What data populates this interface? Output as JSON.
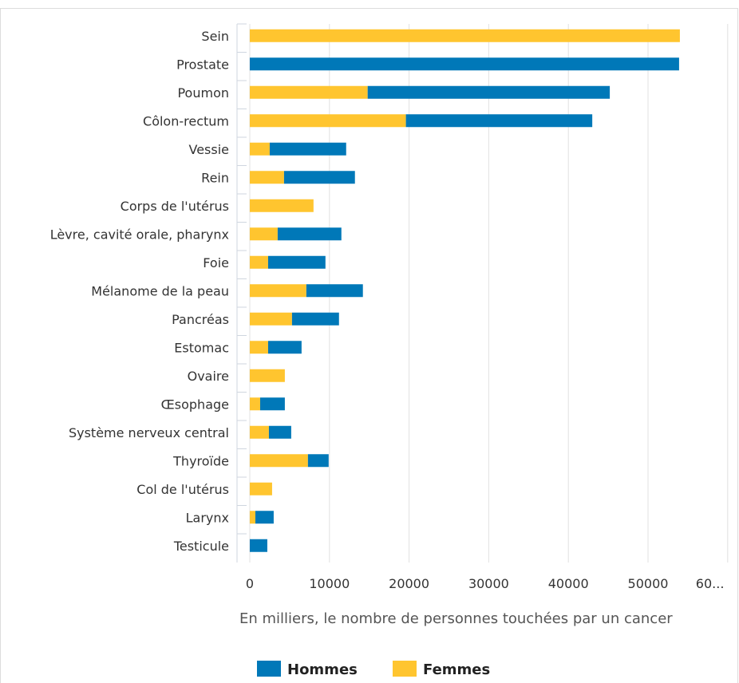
{
  "chart_data": {
    "type": "bar",
    "orientation": "horizontal",
    "stacked": true,
    "categories": [
      "Sein",
      "Prostate",
      "Poumon",
      "Côlon-rectum",
      "Vessie",
      "Rein",
      "Corps de l'utérus",
      "Lèvre, cavité orale, pharynx",
      "Foie",
      "Mélanome de la peau",
      "Pancréas",
      "Estomac",
      "Ovaire",
      "Œsophage",
      "Système nerveux central",
      "Thyroïde",
      "Col de l'utérus",
      "Larynx",
      "Testicule"
    ],
    "series": [
      {
        "name": "Femmes",
        "color": "#FFC52F",
        "values": [
          54000,
          0,
          14800,
          19600,
          2500,
          4300,
          8000,
          3500,
          2300,
          7100,
          5300,
          2300,
          4400,
          1300,
          2400,
          7300,
          2800,
          700,
          0
        ]
      },
      {
        "name": "Hommes",
        "color": "#0078B8",
        "values": [
          0,
          53900,
          30400,
          23400,
          9600,
          8900,
          0,
          8000,
          7200,
          7100,
          5900,
          4200,
          0,
          3100,
          2800,
          2600,
          0,
          2300,
          2200
        ]
      }
    ],
    "xlim": [
      0,
      60000
    ],
    "ticks": [
      "0",
      "10000",
      "20000",
      "30000",
      "40000",
      "50000",
      "60..."
    ],
    "xlabel": "En milliers, le nombre de personnes touchées par un cancer",
    "legend": [
      "Hommes",
      "Femmes"
    ],
    "legend_position": "bottom",
    "grid": true
  }
}
